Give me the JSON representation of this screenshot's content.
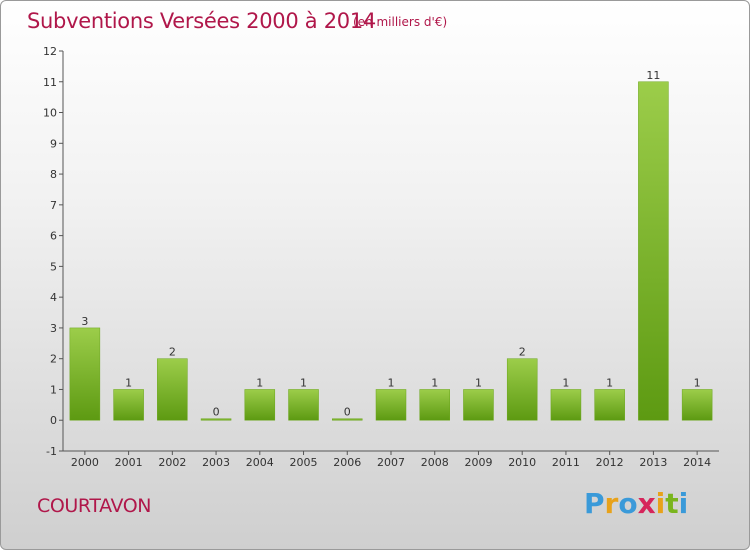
{
  "header": {
    "title": "Subventions Versées 2000 à 2014",
    "subtitle": "(en milliers d'€)"
  },
  "footer": {
    "commune": "COURTAVON",
    "logo_letters": [
      "P",
      "r",
      "o",
      "x",
      "i",
      "t",
      "i"
    ],
    "logo_colors": [
      "#3a9ad9",
      "#e8a21a",
      "#3a9ad9",
      "#d6255b",
      "#e8a21a",
      "#7ab51d",
      "#3a9ad9"
    ]
  },
  "chart_data": {
    "type": "bar",
    "title": "Subventions Versées 2000 à 2014",
    "subtitle": "(en milliers d'€)",
    "categories": [
      "2000",
      "2001",
      "2002",
      "2003",
      "2004",
      "2005",
      "2006",
      "2007",
      "2008",
      "2009",
      "2010",
      "2011",
      "2012",
      "2013",
      "2014"
    ],
    "values": [
      3,
      1,
      2,
      0,
      1,
      1,
      0,
      1,
      1,
      1,
      2,
      1,
      1,
      11,
      1
    ],
    "data_labels": [
      "3",
      "1",
      "2",
      "0",
      "1",
      "1",
      "0",
      "1",
      "1",
      "1",
      "2",
      "1",
      "1",
      "11",
      "1"
    ],
    "ylim": [
      -1,
      12
    ],
    "yticks": [
      -1,
      0,
      1,
      2,
      3,
      4,
      5,
      6,
      7,
      8,
      9,
      10,
      11,
      12
    ],
    "grid": false,
    "bar_color": "#7ab51d"
  }
}
